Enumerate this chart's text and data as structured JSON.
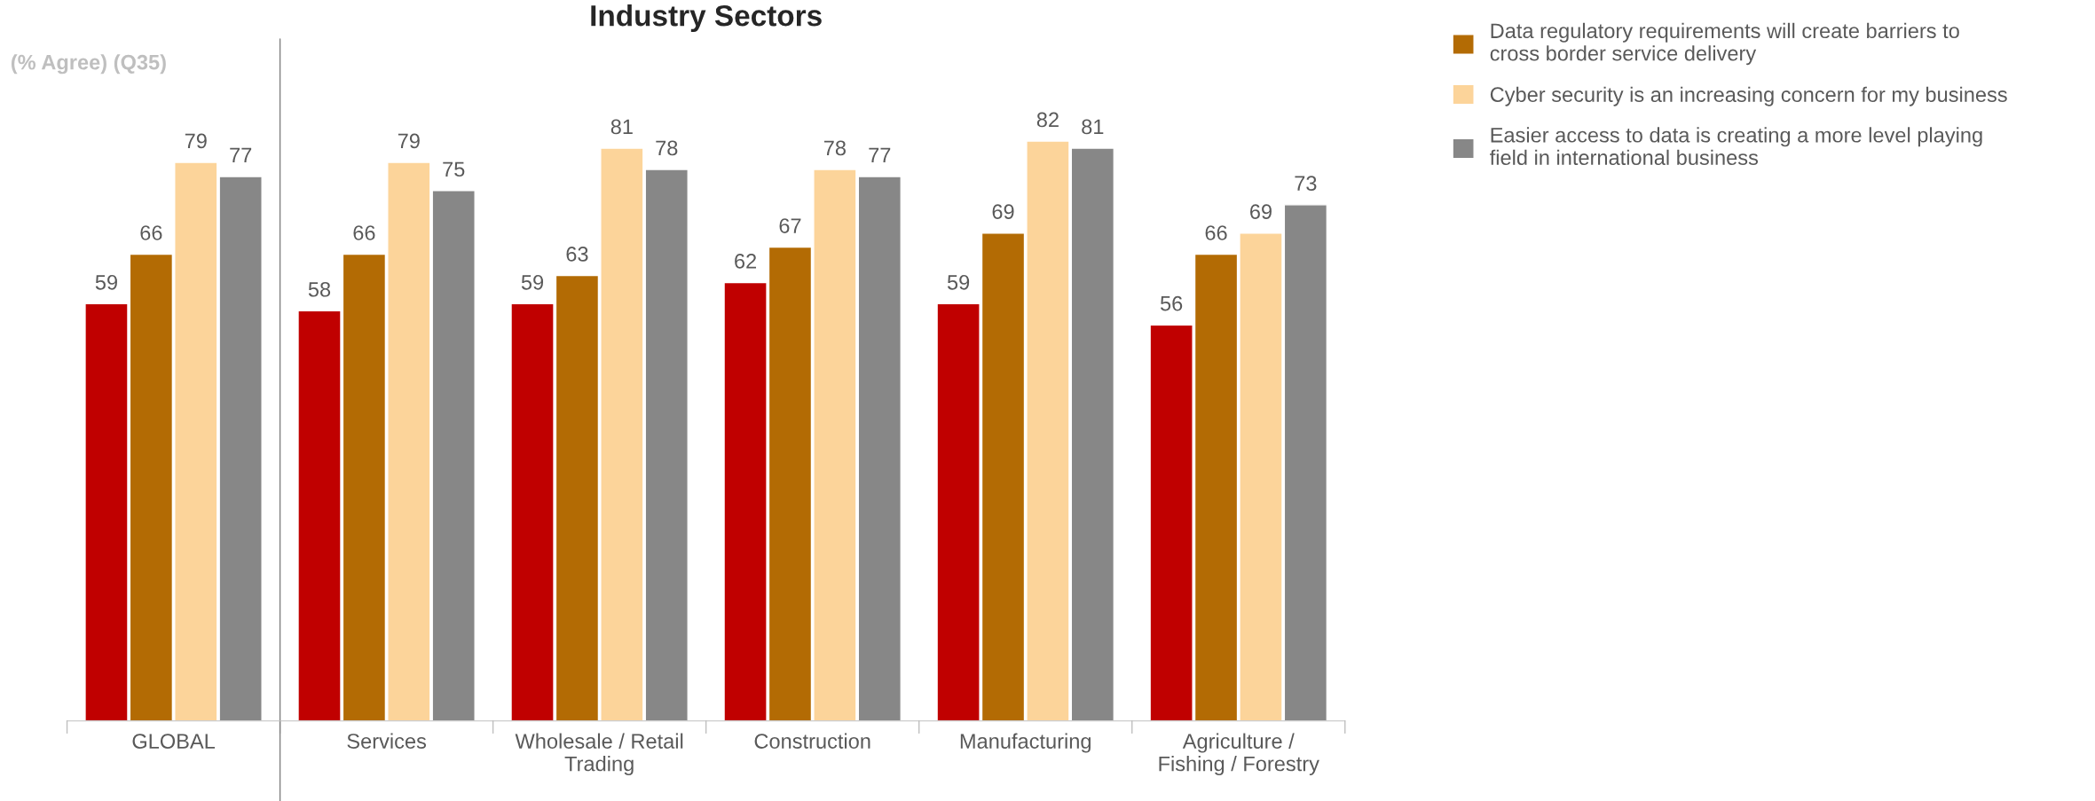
{
  "chart_data": {
    "type": "bar",
    "title": "Industry Sectors",
    "categories": [
      "GLOBAL",
      "Services",
      "Wholesale / Retail\nTrading",
      "Construction",
      "Manufacturing",
      "Agriculture /\nFishing / Forestry"
    ],
    "series": [
      {
        "color": "#c00000",
        "values": [
          59,
          58,
          59,
          62,
          59,
          56
        ]
      },
      {
        "name": "Data regulatory requirements will create barriers to\ncross border service delivery",
        "color": "#b36b04",
        "values": [
          66,
          66,
          63,
          67,
          69,
          66
        ]
      },
      {
        "name": "Cyber security is an increasing concern for my business",
        "color": "#fcd49a",
        "values": [
          79,
          79,
          81,
          78,
          82,
          69
        ]
      },
      {
        "name": "Easier access to data is creating a more level playing\nfield in international business",
        "color": "#878787",
        "values": [
          77,
          75,
          78,
          77,
          81,
          73
        ]
      }
    ],
    "data_labels": true,
    "annotations": [
      "(% Agree) (Q35)"
    ],
    "legend": "top right",
    "grid": false
  }
}
